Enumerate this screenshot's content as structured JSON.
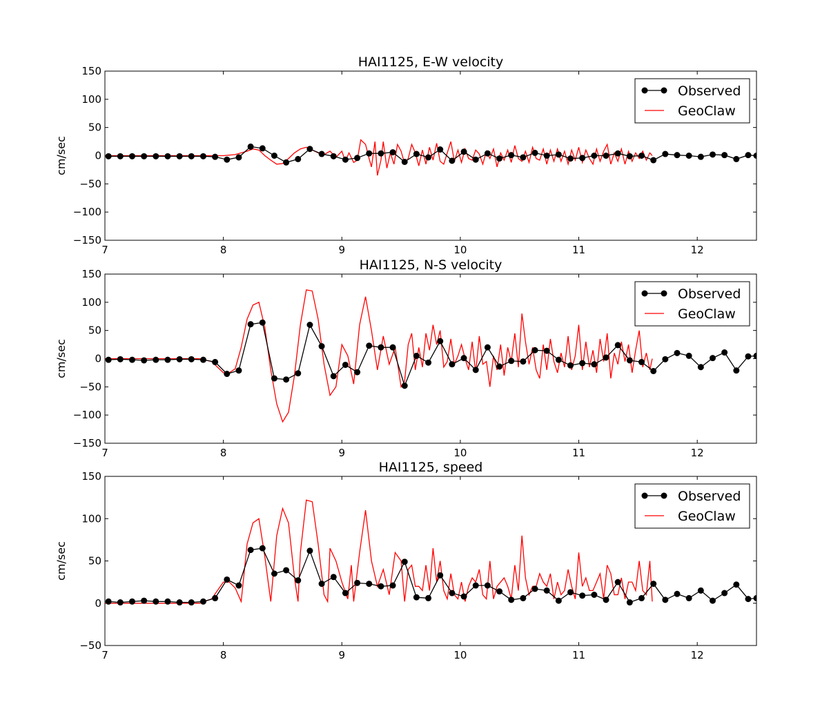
{
  "chart_data": [
    {
      "type": "line",
      "title": "HAI1125, E-W velocity",
      "ylabel": "cm/sec",
      "xlim": [
        7,
        12.5
      ],
      "ylim": [
        -150,
        150
      ],
      "xticks": [
        7,
        8,
        9,
        10,
        11,
        12
      ],
      "yticks": [
        -150,
        -100,
        -50,
        0,
        50,
        100,
        150
      ],
      "ytick_labels": [
        "−150",
        "−100",
        "−50",
        "0",
        "50",
        "100",
        "150"
      ],
      "legend_position": "top-right",
      "series": [
        {
          "name": "Observed",
          "color": "#000000",
          "marker": "circle",
          "x": [
            7.03,
            7.13,
            7.23,
            7.33,
            7.43,
            7.53,
            7.63,
            7.73,
            7.83,
            7.93,
            8.03,
            8.13,
            8.23,
            8.33,
            8.43,
            8.53,
            8.63,
            8.73,
            8.83,
            8.93,
            9.03,
            9.13,
            9.23,
            9.33,
            9.43,
            9.53,
            9.63,
            9.73,
            9.83,
            9.93,
            10.03,
            10.13,
            10.23,
            10.33,
            10.43,
            10.53,
            10.63,
            10.73,
            10.83,
            10.93,
            11.03,
            11.13,
            11.23,
            11.33,
            11.43,
            11.53,
            11.63,
            11.73,
            11.83,
            11.93,
            12.03,
            12.13,
            12.23,
            12.33,
            12.43,
            12.5
          ],
          "y": [
            -1,
            -1,
            -1,
            -1,
            -1,
            -1,
            -1,
            -1,
            -1,
            -2,
            -7,
            -3,
            16,
            13,
            0,
            -12,
            -6,
            12,
            3,
            -1,
            -7,
            -4,
            4,
            4,
            6,
            -11,
            3,
            -3,
            11,
            -9,
            7,
            -7,
            4,
            -5,
            1,
            -3,
            5,
            0,
            2,
            -5,
            -4,
            0,
            0,
            4,
            -1,
            0,
            -8,
            3,
            1,
            0,
            -2,
            2,
            1,
            -6,
            1,
            0
          ]
        },
        {
          "name": "GeoClaw",
          "color": "#ff0000",
          "x": [
            7.0,
            7.8,
            7.9,
            8.0,
            8.1,
            8.2,
            8.25,
            8.3,
            8.35,
            8.4,
            8.45,
            8.5,
            8.55,
            8.6,
            8.65,
            8.7,
            8.75,
            8.8,
            8.85,
            8.9,
            8.95,
            9.0,
            9.03,
            9.06,
            9.1,
            9.13,
            9.16,
            9.2,
            9.23,
            9.25,
            9.28,
            9.3,
            9.33,
            9.35,
            9.38,
            9.41,
            9.44,
            9.47,
            9.5,
            9.53,
            9.56,
            9.59,
            9.62,
            9.65,
            9.68,
            9.71,
            9.74,
            9.77,
            9.8,
            9.83,
            9.86,
            9.89,
            9.92,
            9.95,
            9.98,
            10.01,
            10.04,
            10.07,
            10.1,
            10.13,
            10.16,
            10.19,
            10.22,
            10.25,
            10.28,
            10.31,
            10.34,
            10.37,
            10.4,
            10.43,
            10.46,
            10.49,
            10.52,
            10.55,
            10.58,
            10.61,
            10.64,
            10.67,
            10.7,
            10.73,
            10.76,
            10.79,
            10.82,
            10.85,
            10.88,
            10.91,
            10.94,
            10.97,
            11.0,
            11.03,
            11.06,
            11.09,
            11.12,
            11.15,
            11.18,
            11.21,
            11.24,
            11.27,
            11.3,
            11.33,
            11.36,
            11.39,
            11.42,
            11.45,
            11.48,
            11.51,
            11.54,
            11.57,
            11.6,
            11.62
          ],
          "y": [
            0,
            0,
            0,
            0,
            2,
            8,
            12,
            10,
            0,
            -8,
            -15,
            -14,
            -5,
            5,
            12,
            15,
            10,
            5,
            2,
            8,
            -3,
            8,
            -10,
            5,
            -12,
            -8,
            28,
            20,
            -5,
            -20,
            25,
            -35,
            -8,
            25,
            -22,
            5,
            -15,
            20,
            8,
            -14,
            -5,
            20,
            5,
            -18,
            10,
            -15,
            15,
            -8,
            22,
            -10,
            -15,
            5,
            25,
            -10,
            10,
            -12,
            12,
            -5,
            -8,
            10,
            3,
            -15,
            8,
            -5,
            12,
            -20,
            5,
            -8,
            10,
            -12,
            18,
            -5,
            -10,
            8,
            -12,
            15,
            -5,
            -8,
            12,
            -15,
            10,
            -10,
            12,
            -10,
            8,
            -15,
            10,
            -8,
            15,
            -12,
            10,
            -5,
            -15,
            12,
            -10,
            8,
            20,
            -15,
            5,
            -10,
            12,
            -15,
            8,
            -10,
            5,
            -5,
            8,
            -8,
            5,
            0
          ]
        }
      ]
    },
    {
      "type": "line",
      "title": "HAI1125, N-S velocity",
      "ylabel": "cm/sec",
      "xlim": [
        7,
        12.5
      ],
      "ylim": [
        -150,
        150
      ],
      "xticks": [
        7,
        8,
        9,
        10,
        11,
        12
      ],
      "yticks": [
        -150,
        -100,
        -50,
        0,
        50,
        100,
        150
      ],
      "ytick_labels": [
        "−150",
        "−100",
        "−50",
        "0",
        "50",
        "100",
        "150"
      ],
      "legend_position": "top-right",
      "series": [
        {
          "name": "Observed",
          "color": "#000000",
          "marker": "circle",
          "x": [
            7.03,
            7.13,
            7.23,
            7.33,
            7.43,
            7.53,
            7.63,
            7.73,
            7.83,
            7.93,
            8.03,
            8.13,
            8.23,
            8.33,
            8.43,
            8.53,
            8.63,
            8.73,
            8.83,
            8.93,
            9.03,
            9.13,
            9.23,
            9.33,
            9.43,
            9.53,
            9.63,
            9.73,
            9.83,
            9.93,
            10.03,
            10.13,
            10.23,
            10.33,
            10.43,
            10.53,
            10.63,
            10.73,
            10.83,
            10.93,
            11.03,
            11.13,
            11.23,
            11.33,
            11.43,
            11.53,
            11.63,
            11.73,
            11.83,
            11.93,
            12.03,
            12.13,
            12.23,
            12.33,
            12.43,
            12.5
          ],
          "y": [
            -2,
            -1,
            -2,
            -3,
            -2,
            -2,
            -1,
            -1,
            -2,
            -6,
            -27,
            -21,
            61,
            64,
            -35,
            -37,
            -26,
            60,
            22,
            -31,
            -11,
            -24,
            23,
            20,
            20,
            -48,
            5,
            -7,
            31,
            -10,
            1,
            -20,
            20,
            -14,
            -4,
            -5,
            15,
            14,
            -2,
            -12,
            -8,
            -10,
            2,
            24,
            -3,
            -6,
            -22,
            -1,
            10,
            5,
            -15,
            1,
            11,
            -21,
            4,
            5
          ]
        },
        {
          "name": "GeoClaw",
          "color": "#ff0000",
          "x": [
            7.0,
            7.8,
            7.9,
            8.0,
            8.05,
            8.1,
            8.15,
            8.2,
            8.25,
            8.3,
            8.35,
            8.4,
            8.45,
            8.5,
            8.55,
            8.6,
            8.65,
            8.7,
            8.75,
            8.8,
            8.85,
            8.9,
            8.95,
            9.0,
            9.05,
            9.1,
            9.15,
            9.2,
            9.25,
            9.3,
            9.35,
            9.4,
            9.45,
            9.5,
            9.53,
            9.56,
            9.59,
            9.62,
            9.65,
            9.68,
            9.71,
            9.74,
            9.77,
            9.8,
            9.83,
            9.86,
            9.89,
            9.92,
            9.95,
            9.98,
            10.01,
            10.04,
            10.07,
            10.1,
            10.13,
            10.16,
            10.19,
            10.22,
            10.25,
            10.28,
            10.31,
            10.34,
            10.37,
            10.4,
            10.43,
            10.46,
            10.49,
            10.52,
            10.55,
            10.58,
            10.61,
            10.64,
            10.67,
            10.7,
            10.73,
            10.76,
            10.79,
            10.82,
            10.85,
            10.88,
            10.91,
            10.94,
            10.97,
            11.0,
            11.03,
            11.06,
            11.09,
            11.12,
            11.15,
            11.18,
            11.21,
            11.24,
            11.27,
            11.3,
            11.33,
            11.36,
            11.39,
            11.42,
            11.45,
            11.48,
            11.51,
            11.54,
            11.57,
            11.6,
            11.62
          ],
          "y": [
            0,
            0,
            -5,
            -25,
            -25,
            -18,
            20,
            70,
            95,
            100,
            55,
            -20,
            -80,
            -112,
            -95,
            -30,
            60,
            122,
            120,
            70,
            -10,
            -65,
            -50,
            25,
            5,
            -45,
            60,
            110,
            50,
            -20,
            40,
            -10,
            20,
            -50,
            -40,
            25,
            45,
            -20,
            20,
            -15,
            45,
            15,
            60,
            25,
            50,
            -15,
            -5,
            35,
            -10,
            5,
            25,
            0,
            -20,
            30,
            -25,
            40,
            -10,
            -5,
            -50,
            5,
            -20,
            25,
            -30,
            20,
            -5,
            45,
            -15,
            80,
            30,
            -10,
            20,
            -20,
            -35,
            25,
            -20,
            35,
            -5,
            -25,
            10,
            -15,
            40,
            -20,
            5,
            60,
            -20,
            30,
            -15,
            15,
            -25,
            35,
            -5,
            45,
            -35,
            10,
            -10,
            30,
            -5,
            25,
            -25,
            15,
            50,
            -15,
            10,
            -20,
            0
          ]
        }
      ]
    },
    {
      "type": "line",
      "title": "HAI1125, speed",
      "ylabel": "cm/sec",
      "xlim": [
        7,
        12.5
      ],
      "ylim": [
        -50,
        150
      ],
      "xticks": [
        7,
        8,
        9,
        10,
        11,
        12
      ],
      "yticks": [
        -50,
        0,
        50,
        100,
        150
      ],
      "ytick_labels": [
        "−50",
        "0",
        "50",
        "100",
        "150"
      ],
      "legend_position": "top-right",
      "series": [
        {
          "name": "Observed",
          "color": "#000000",
          "marker": "circle",
          "x": [
            7.03,
            7.13,
            7.23,
            7.33,
            7.43,
            7.53,
            7.63,
            7.73,
            7.83,
            7.93,
            8.03,
            8.13,
            8.23,
            8.33,
            8.43,
            8.53,
            8.63,
            8.73,
            8.83,
            8.93,
            9.03,
            9.13,
            9.23,
            9.33,
            9.43,
            9.53,
            9.63,
            9.73,
            9.83,
            9.93,
            10.03,
            10.13,
            10.23,
            10.33,
            10.43,
            10.53,
            10.63,
            10.73,
            10.83,
            10.93,
            11.03,
            11.13,
            11.23,
            11.33,
            11.43,
            11.53,
            11.63,
            11.73,
            11.83,
            11.93,
            12.03,
            12.13,
            12.23,
            12.33,
            12.43,
            12.5
          ],
          "y": [
            2,
            1,
            2,
            3,
            2,
            2,
            1,
            1,
            2,
            6,
            28,
            21,
            63,
            65,
            35,
            39,
            27,
            62,
            23,
            31,
            12,
            24,
            23,
            20,
            21,
            49,
            7,
            6,
            33,
            12,
            8,
            21,
            21,
            14,
            4,
            6,
            17,
            15,
            3,
            13,
            9,
            10,
            4,
            25,
            1,
            6,
            23,
            4,
            11,
            6,
            15,
            3,
            12,
            22,
            5,
            6
          ]
        },
        {
          "name": "GeoClaw",
          "color": "#ff0000",
          "x": [
            7.0,
            7.8,
            7.9,
            8.0,
            8.05,
            8.1,
            8.15,
            8.2,
            8.25,
            8.3,
            8.35,
            8.4,
            8.45,
            8.5,
            8.55,
            8.6,
            8.63,
            8.65,
            8.7,
            8.75,
            8.8,
            8.85,
            8.88,
            8.9,
            8.95,
            9.0,
            9.05,
            9.08,
            9.1,
            9.15,
            9.2,
            9.25,
            9.3,
            9.35,
            9.4,
            9.45,
            9.5,
            9.53,
            9.56,
            9.59,
            9.62,
            9.65,
            9.68,
            9.71,
            9.74,
            9.77,
            9.8,
            9.83,
            9.86,
            9.89,
            9.92,
            9.95,
            9.98,
            10.01,
            10.04,
            10.07,
            10.1,
            10.13,
            10.16,
            10.19,
            10.22,
            10.25,
            10.28,
            10.31,
            10.34,
            10.37,
            10.4,
            10.43,
            10.46,
            10.49,
            10.52,
            10.55,
            10.58,
            10.61,
            10.64,
            10.67,
            10.7,
            10.73,
            10.76,
            10.79,
            10.82,
            10.85,
            10.88,
            10.91,
            10.94,
            10.97,
            11.0,
            11.03,
            11.06,
            11.09,
            11.12,
            11.15,
            11.18,
            11.21,
            11.24,
            11.27,
            11.3,
            11.33,
            11.36,
            11.39,
            11.42,
            11.45,
            11.48,
            11.51,
            11.54,
            11.57,
            11.6,
            11.62
          ],
          "y": [
            0,
            0,
            5,
            25,
            25,
            18,
            2,
            70,
            95,
            100,
            55,
            2,
            80,
            112,
            95,
            30,
            2,
            60,
            122,
            120,
            70,
            10,
            2,
            65,
            50,
            25,
            5,
            45,
            2,
            60,
            110,
            50,
            20,
            40,
            10,
            60,
            50,
            2,
            40,
            45,
            20,
            20,
            15,
            45,
            15,
            65,
            25,
            50,
            15,
            5,
            35,
            10,
            5,
            25,
            2,
            20,
            30,
            25,
            40,
            10,
            5,
            50,
            5,
            20,
            25,
            30,
            20,
            5,
            45,
            15,
            80,
            30,
            10,
            20,
            20,
            35,
            25,
            20,
            35,
            5,
            25,
            10,
            15,
            40,
            20,
            5,
            60,
            20,
            30,
            15,
            15,
            25,
            35,
            5,
            45,
            35,
            10,
            10,
            30,
            5,
            25,
            25,
            15,
            50,
            15,
            10,
            50,
            2
          ]
        }
      ]
    }
  ]
}
